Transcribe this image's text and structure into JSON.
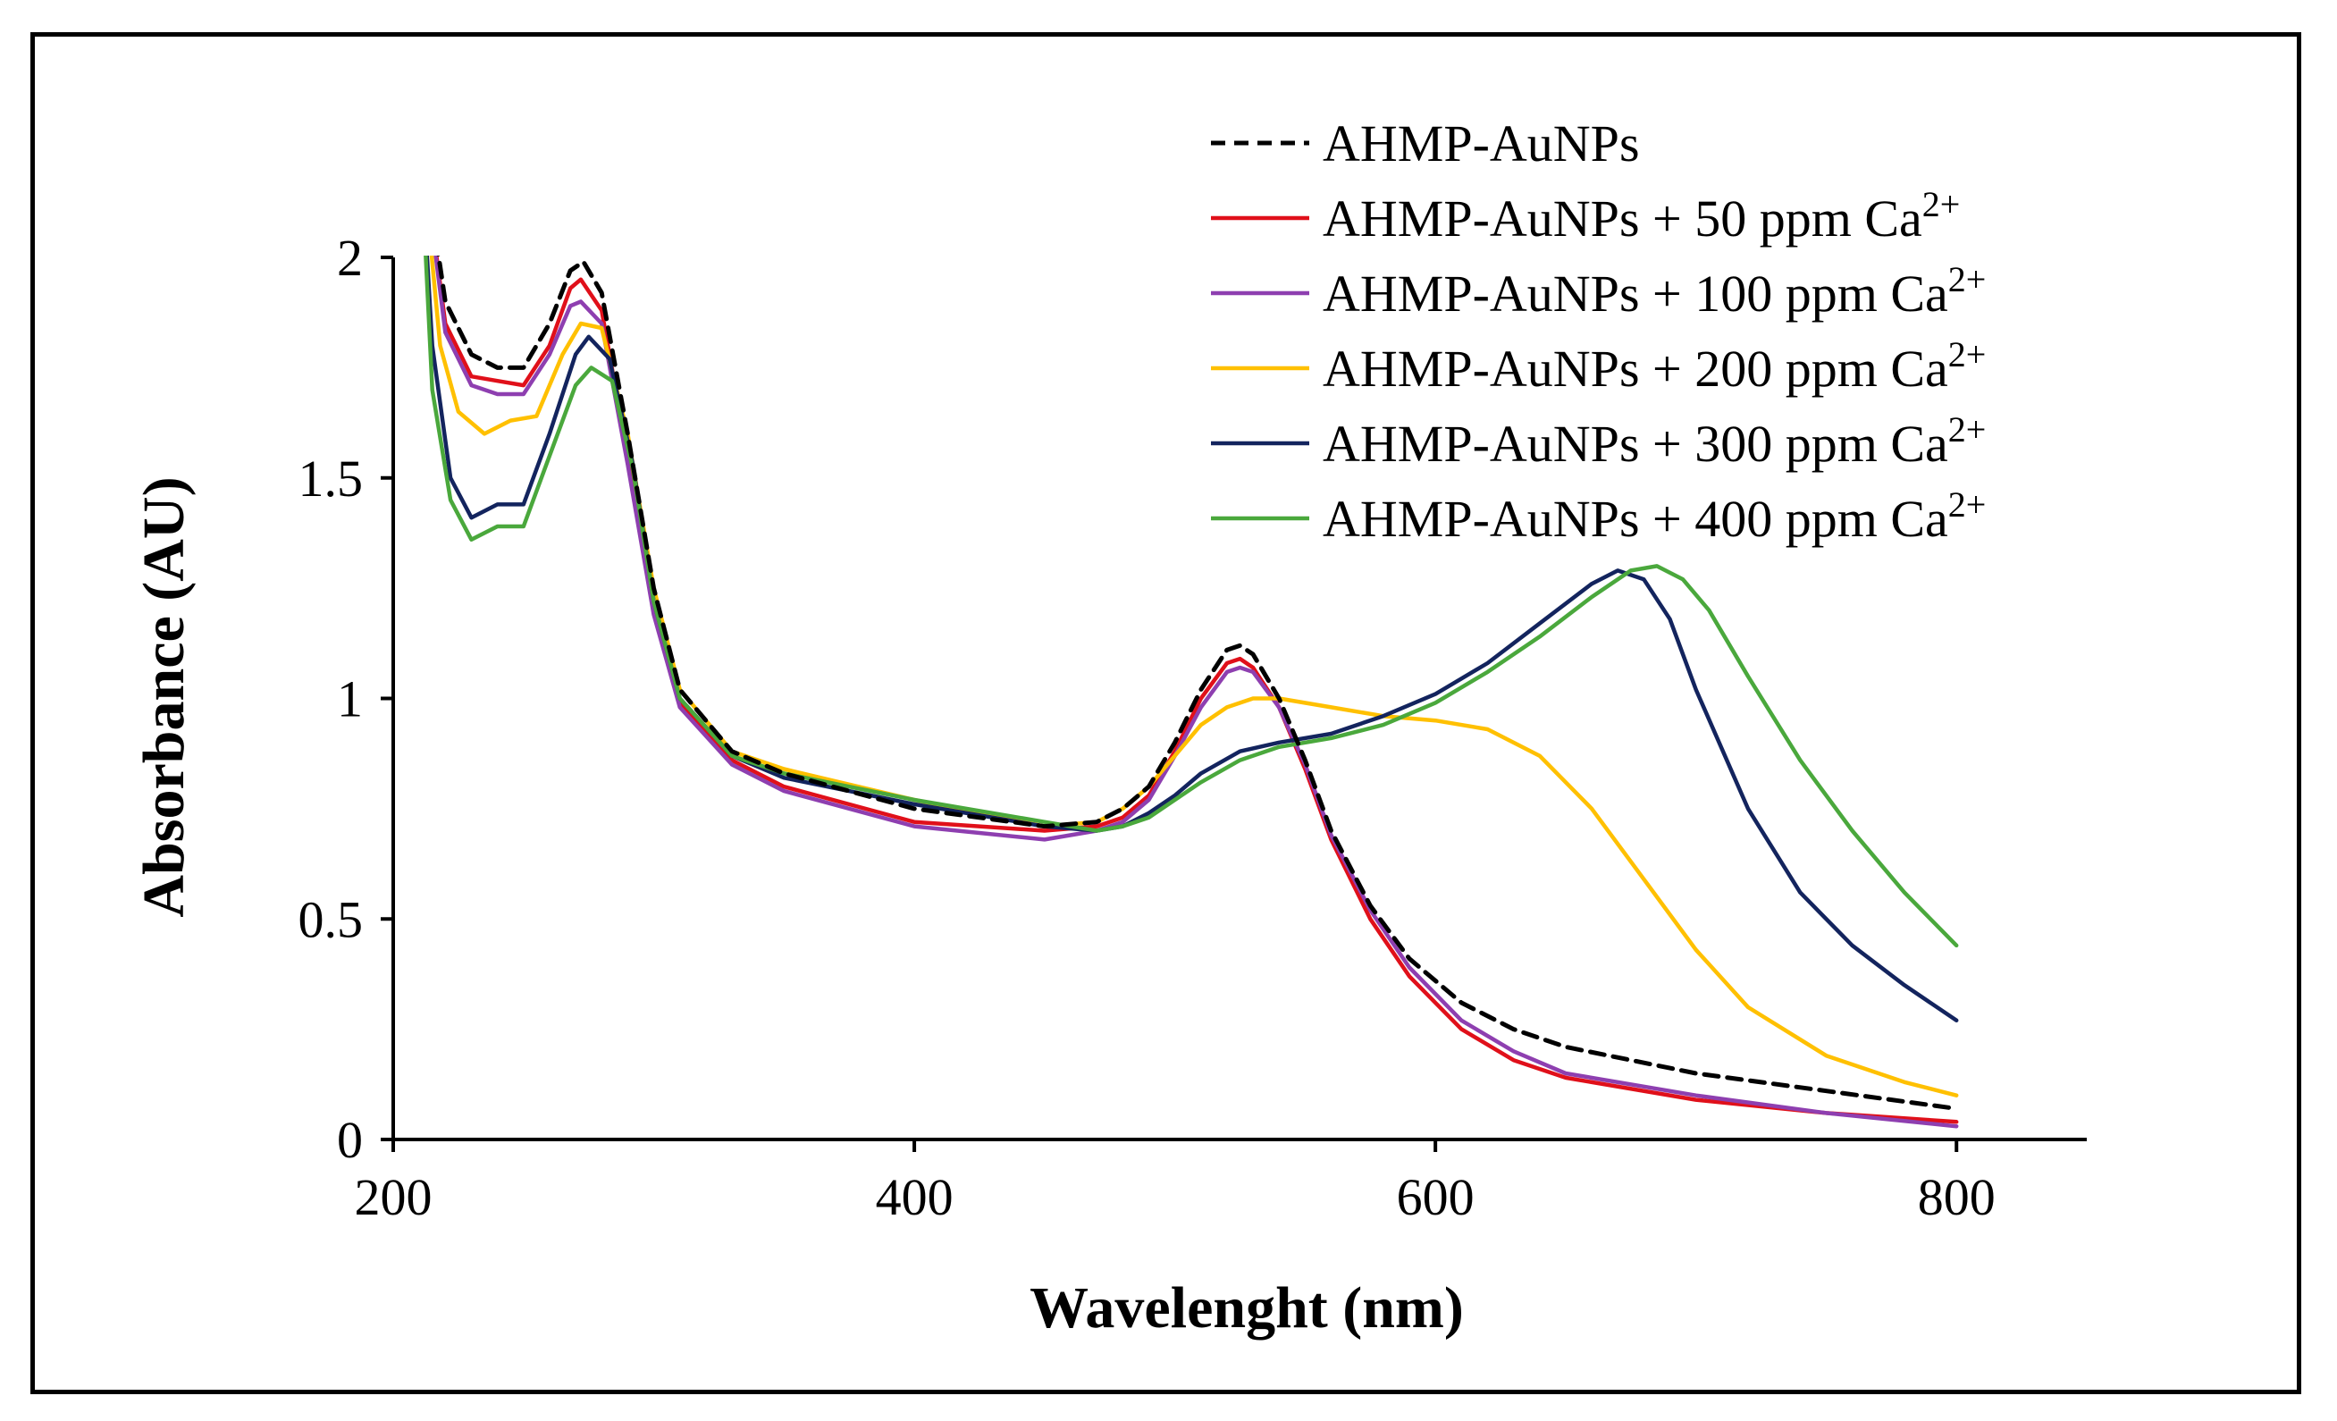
{
  "chart_data": {
    "type": "line",
    "title": "",
    "xlabel": "Wavelenght (nm)",
    "ylabel": "Absorbance (AU)",
    "xlim": [
      200,
      850
    ],
    "ylim": [
      0,
      2
    ],
    "x_ticks": [
      "200",
      "400",
      "600",
      "800"
    ],
    "y_ticks": [
      "0",
      "0.5",
      "1",
      "1.5",
      "2"
    ],
    "grid": false,
    "legend_position": "top-right",
    "series": [
      {
        "name": "AHMP-AuNPs",
        "legend_text": "AHMP-AuNPs",
        "legend_ion": "",
        "legend_charge": "",
        "color": "#000000",
        "dashed": true,
        "points": [
          [
            210,
            2.3
          ],
          [
            220,
            1.9
          ],
          [
            230,
            1.78
          ],
          [
            240,
            1.75
          ],
          [
            250,
            1.75
          ],
          [
            260,
            1.85
          ],
          [
            268,
            1.97
          ],
          [
            273,
            1.99
          ],
          [
            280,
            1.92
          ],
          [
            290,
            1.6
          ],
          [
            300,
            1.25
          ],
          [
            310,
            1.02
          ],
          [
            330,
            0.88
          ],
          [
            350,
            0.83
          ],
          [
            400,
            0.75
          ],
          [
            450,
            0.71
          ],
          [
            470,
            0.72
          ],
          [
            480,
            0.75
          ],
          [
            490,
            0.8
          ],
          [
            500,
            0.9
          ],
          [
            510,
            1.02
          ],
          [
            520,
            1.11
          ],
          [
            525,
            1.12
          ],
          [
            530,
            1.1
          ],
          [
            540,
            1.0
          ],
          [
            550,
            0.86
          ],
          [
            560,
            0.7
          ],
          [
            575,
            0.53
          ],
          [
            590,
            0.41
          ],
          [
            610,
            0.31
          ],
          [
            630,
            0.25
          ],
          [
            650,
            0.21
          ],
          [
            700,
            0.15
          ],
          [
            750,
            0.11
          ],
          [
            800,
            0.07
          ]
        ]
      },
      {
        "name": "AHMP-AuNPs + 50 ppm Ca2+",
        "legend_text": "AHMP-AuNPs + 50 ppm ",
        "legend_ion": "Ca",
        "legend_charge": "2+",
        "color": "#e0101a",
        "dashed": false,
        "points": [
          [
            210,
            2.3
          ],
          [
            220,
            1.85
          ],
          [
            230,
            1.73
          ],
          [
            240,
            1.72
          ],
          [
            250,
            1.71
          ],
          [
            260,
            1.8
          ],
          [
            268,
            1.93
          ],
          [
            272,
            1.95
          ],
          [
            280,
            1.88
          ],
          [
            290,
            1.55
          ],
          [
            300,
            1.2
          ],
          [
            310,
            0.99
          ],
          [
            330,
            0.86
          ],
          [
            350,
            0.8
          ],
          [
            400,
            0.72
          ],
          [
            450,
            0.7
          ],
          [
            470,
            0.71
          ],
          [
            480,
            0.73
          ],
          [
            490,
            0.78
          ],
          [
            500,
            0.88
          ],
          [
            510,
            1.0
          ],
          [
            520,
            1.08
          ],
          [
            525,
            1.09
          ],
          [
            530,
            1.07
          ],
          [
            540,
            0.98
          ],
          [
            550,
            0.84
          ],
          [
            560,
            0.68
          ],
          [
            575,
            0.5
          ],
          [
            590,
            0.37
          ],
          [
            610,
            0.25
          ],
          [
            630,
            0.18
          ],
          [
            650,
            0.14
          ],
          [
            700,
            0.09
          ],
          [
            750,
            0.06
          ],
          [
            800,
            0.04
          ]
        ]
      },
      {
        "name": "AHMP-AuNPs + 100 ppm Ca2+",
        "legend_text": "AHMP-AuNPs + 100 ppm ",
        "legend_ion": "Ca",
        "legend_charge": "2+",
        "color": "#8e3fb0",
        "dashed": false,
        "points": [
          [
            210,
            2.3
          ],
          [
            220,
            1.83
          ],
          [
            230,
            1.71
          ],
          [
            240,
            1.69
          ],
          [
            250,
            1.69
          ],
          [
            260,
            1.78
          ],
          [
            268,
            1.89
          ],
          [
            272,
            1.9
          ],
          [
            280,
            1.85
          ],
          [
            290,
            1.53
          ],
          [
            300,
            1.19
          ],
          [
            310,
            0.98
          ],
          [
            330,
            0.85
          ],
          [
            350,
            0.79
          ],
          [
            400,
            0.71
          ],
          [
            450,
            0.68
          ],
          [
            470,
            0.7
          ],
          [
            480,
            0.72
          ],
          [
            490,
            0.77
          ],
          [
            500,
            0.87
          ],
          [
            510,
            0.98
          ],
          [
            520,
            1.06
          ],
          [
            525,
            1.07
          ],
          [
            530,
            1.06
          ],
          [
            540,
            0.98
          ],
          [
            550,
            0.85
          ],
          [
            560,
            0.69
          ],
          [
            575,
            0.52
          ],
          [
            590,
            0.39
          ],
          [
            610,
            0.27
          ],
          [
            630,
            0.2
          ],
          [
            650,
            0.15
          ],
          [
            700,
            0.1
          ],
          [
            750,
            0.06
          ],
          [
            800,
            0.03
          ]
        ]
      },
      {
        "name": "AHMP-AuNPs + 200 ppm Ca2+",
        "legend_text": "AHMP-AuNPs + 200 ppm ",
        "legend_ion": "Ca",
        "legend_charge": "2+",
        "color": "#ffc000",
        "dashed": false,
        "points": [
          [
            210,
            2.3
          ],
          [
            218,
            1.8
          ],
          [
            225,
            1.65
          ],
          [
            235,
            1.6
          ],
          [
            245,
            1.63
          ],
          [
            255,
            1.64
          ],
          [
            265,
            1.78
          ],
          [
            272,
            1.85
          ],
          [
            280,
            1.84
          ],
          [
            290,
            1.6
          ],
          [
            300,
            1.25
          ],
          [
            310,
            1.02
          ],
          [
            330,
            0.88
          ],
          [
            350,
            0.84
          ],
          [
            400,
            0.77
          ],
          [
            450,
            0.71
          ],
          [
            470,
            0.72
          ],
          [
            480,
            0.75
          ],
          [
            490,
            0.8
          ],
          [
            500,
            0.87
          ],
          [
            510,
            0.94
          ],
          [
            520,
            0.98
          ],
          [
            530,
            1.0
          ],
          [
            540,
            1.0
          ],
          [
            560,
            0.98
          ],
          [
            580,
            0.96
          ],
          [
            600,
            0.95
          ],
          [
            620,
            0.93
          ],
          [
            640,
            0.87
          ],
          [
            660,
            0.75
          ],
          [
            680,
            0.59
          ],
          [
            700,
            0.43
          ],
          [
            720,
            0.3
          ],
          [
            750,
            0.19
          ],
          [
            780,
            0.13
          ],
          [
            800,
            0.1
          ]
        ]
      },
      {
        "name": "AHMP-AuNPs + 300 ppm Ca2+",
        "legend_text": "AHMP-AuNPs + 300 ppm ",
        "legend_ion": "Ca",
        "legend_charge": "2+",
        "color": "#13245e",
        "dashed": false,
        "points": [
          [
            210,
            2.3
          ],
          [
            215,
            1.8
          ],
          [
            222,
            1.5
          ],
          [
            230,
            1.41
          ],
          [
            240,
            1.44
          ],
          [
            250,
            1.44
          ],
          [
            260,
            1.6
          ],
          [
            270,
            1.78
          ],
          [
            275,
            1.82
          ],
          [
            283,
            1.77
          ],
          [
            292,
            1.53
          ],
          [
            300,
            1.22
          ],
          [
            310,
            1.0
          ],
          [
            330,
            0.87
          ],
          [
            350,
            0.82
          ],
          [
            400,
            0.76
          ],
          [
            450,
            0.71
          ],
          [
            470,
            0.7
          ],
          [
            480,
            0.71
          ],
          [
            490,
            0.74
          ],
          [
            500,
            0.78
          ],
          [
            510,
            0.83
          ],
          [
            525,
            0.88
          ],
          [
            540,
            0.9
          ],
          [
            560,
            0.92
          ],
          [
            580,
            0.96
          ],
          [
            600,
            1.01
          ],
          [
            620,
            1.08
          ],
          [
            640,
            1.17
          ],
          [
            660,
            1.26
          ],
          [
            670,
            1.29
          ],
          [
            680,
            1.27
          ],
          [
            690,
            1.18
          ],
          [
            700,
            1.02
          ],
          [
            720,
            0.75
          ],
          [
            740,
            0.56
          ],
          [
            760,
            0.44
          ],
          [
            780,
            0.35
          ],
          [
            800,
            0.27
          ]
        ]
      },
      {
        "name": "AHMP-AuNPs + 400 ppm Ca2+",
        "legend_text": "AHMP-AuNPs + 400 ppm ",
        "legend_ion": "Ca",
        "legend_charge": "2+",
        "color": "#4aa83c",
        "dashed": false,
        "points": [
          [
            210,
            2.3
          ],
          [
            215,
            1.7
          ],
          [
            222,
            1.45
          ],
          [
            230,
            1.36
          ],
          [
            240,
            1.39
          ],
          [
            250,
            1.39
          ],
          [
            260,
            1.55
          ],
          [
            270,
            1.71
          ],
          [
            276,
            1.75
          ],
          [
            284,
            1.72
          ],
          [
            292,
            1.52
          ],
          [
            300,
            1.22
          ],
          [
            310,
            1.0
          ],
          [
            330,
            0.87
          ],
          [
            350,
            0.83
          ],
          [
            400,
            0.77
          ],
          [
            450,
            0.72
          ],
          [
            470,
            0.7
          ],
          [
            480,
            0.71
          ],
          [
            490,
            0.73
          ],
          [
            500,
            0.77
          ],
          [
            510,
            0.81
          ],
          [
            525,
            0.86
          ],
          [
            540,
            0.89
          ],
          [
            560,
            0.91
          ],
          [
            580,
            0.94
          ],
          [
            600,
            0.99
          ],
          [
            620,
            1.06
          ],
          [
            640,
            1.14
          ],
          [
            660,
            1.23
          ],
          [
            675,
            1.29
          ],
          [
            685,
            1.3
          ],
          [
            695,
            1.27
          ],
          [
            705,
            1.2
          ],
          [
            720,
            1.05
          ],
          [
            740,
            0.86
          ],
          [
            760,
            0.7
          ],
          [
            780,
            0.56
          ],
          [
            800,
            0.44
          ]
        ]
      }
    ]
  }
}
